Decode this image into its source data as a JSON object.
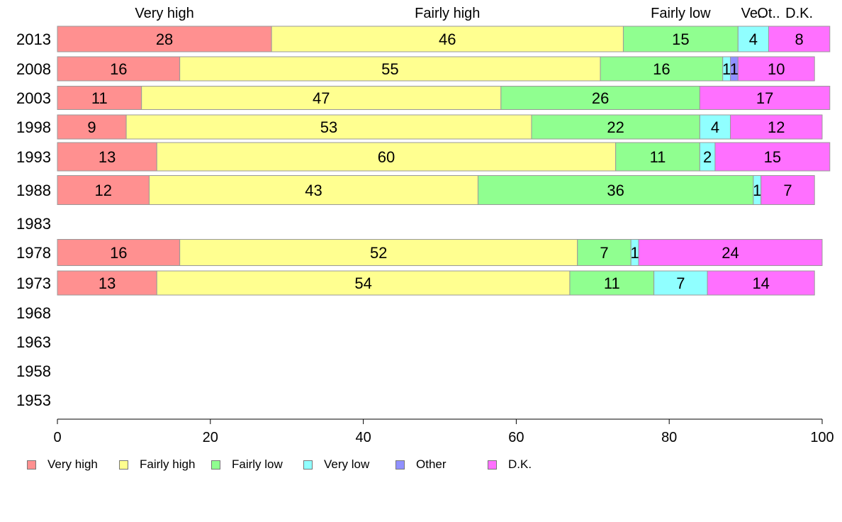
{
  "chart_data": {
    "type": "bar",
    "orientation": "horizontal",
    "stacked": true,
    "categories": [
      "2013",
      "2008",
      "2003",
      "1998",
      "1993",
      "1988",
      "1983",
      "1978",
      "1973",
      "1968",
      "1963",
      "1958",
      "1953"
    ],
    "series": [
      {
        "name": "Very high",
        "color": "#ff9090",
        "values": [
          28,
          16,
          11,
          9,
          13,
          12,
          null,
          16,
          13,
          null,
          null,
          null,
          null
        ]
      },
      {
        "name": "Fairly high",
        "color": "#ffff90",
        "values": [
          46,
          55,
          47,
          53,
          60,
          43,
          null,
          52,
          54,
          null,
          null,
          null,
          null
        ]
      },
      {
        "name": "Fairly low",
        "color": "#90ff90",
        "values": [
          15,
          16,
          26,
          22,
          11,
          36,
          null,
          7,
          11,
          null,
          null,
          null,
          null
        ]
      },
      {
        "name": "Very low",
        "color": "#90ffff",
        "values": [
          4,
          1,
          0,
          4,
          2,
          1,
          null,
          1,
          7,
          null,
          null,
          null,
          null
        ]
      },
      {
        "name": "Other",
        "color": "#9090ff",
        "values": [
          0,
          1,
          0,
          0,
          0,
          0,
          null,
          0,
          0,
          null,
          null,
          null,
          null
        ]
      },
      {
        "name": "D.K.",
        "color": "#ff70ff",
        "values": [
          8,
          10,
          17,
          12,
          15,
          7,
          null,
          24,
          14,
          null,
          null,
          null,
          null
        ]
      }
    ],
    "top_labels": [
      "Very high",
      "Fairly high",
      "Fairly low",
      "Ve..",
      "Ot..",
      "D.K."
    ],
    "xticks": [
      "0",
      "20",
      "40",
      "60",
      "80",
      "100"
    ],
    "xlim": [
      0,
      100
    ],
    "grid": false,
    "legend_position": "bottom"
  }
}
